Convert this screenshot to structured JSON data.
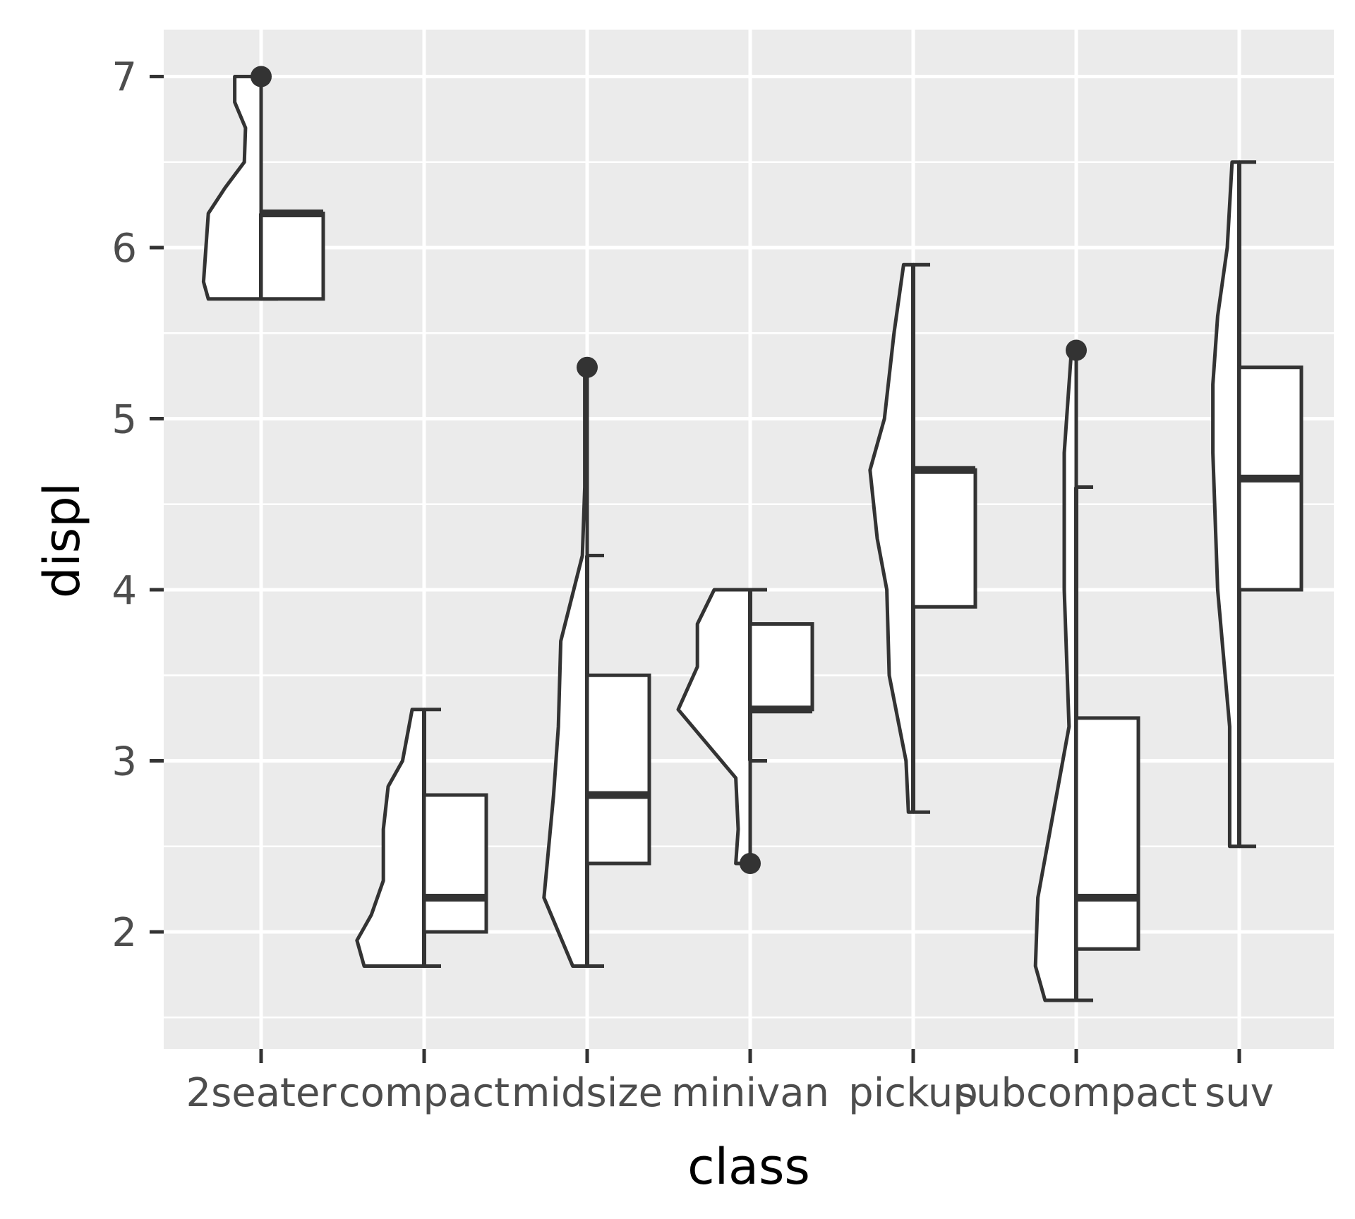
{
  "chart_data": {
    "type": "violin-box",
    "title": "",
    "xlabel": "class",
    "ylabel": "displ",
    "ylim": [
      1.42,
      7.27
    ],
    "yticks": [
      2,
      3,
      4,
      5,
      6,
      7
    ],
    "y_minor_ticks": [
      1.5,
      2.5,
      3.5,
      4.5,
      5.5,
      6.5
    ],
    "grid": true,
    "colors": {
      "panel_background": "#ebebeb",
      "grid": "#ffffff",
      "stroke": "#333333",
      "fill": "#ffffff",
      "tick_text": "#4d4d4d",
      "axis_title": "#000000"
    },
    "categories": [
      "2seater",
      "compact",
      "midsize",
      "minivan",
      "pickup",
      "subcompact",
      "suv"
    ],
    "boxes": [
      {
        "category": "2seater",
        "lower_whisker": 5.7,
        "q1": 5.7,
        "median": 6.2,
        "q3": 6.2,
        "upper_whisker": 6.2,
        "outliers": [
          7.0
        ]
      },
      {
        "category": "compact",
        "lower_whisker": 1.8,
        "q1": 2.0,
        "median": 2.2,
        "q3": 2.8,
        "upper_whisker": 3.3,
        "outliers": []
      },
      {
        "category": "midsize",
        "lower_whisker": 1.8,
        "q1": 2.4,
        "median": 2.8,
        "q3": 3.5,
        "upper_whisker": 4.2,
        "outliers": [
          5.3
        ]
      },
      {
        "category": "minivan",
        "lower_whisker": 3.0,
        "q1": 3.3,
        "median": 3.3,
        "q3": 3.8,
        "upper_whisker": 4.0,
        "outliers": [
          2.4
        ]
      },
      {
        "category": "pickup",
        "lower_whisker": 2.7,
        "q1": 3.9,
        "median": 4.7,
        "q3": 4.7,
        "upper_whisker": 5.9,
        "outliers": []
      },
      {
        "category": "subcompact",
        "lower_whisker": 1.6,
        "q1": 1.9,
        "median": 2.2,
        "q3": 3.25,
        "upper_whisker": 4.6,
        "outliers": [
          5.4
        ]
      },
      {
        "category": "suv",
        "lower_whisker": 2.5,
        "q1": 4.0,
        "median": 4.65,
        "q3": 5.3,
        "upper_whisker": 6.5,
        "outliers": []
      }
    ],
    "violins": [
      {
        "category": "2seater",
        "density": [
          [
            5.7,
            0.22
          ],
          [
            5.8,
            0.24
          ],
          [
            6.0,
            0.23
          ],
          [
            6.2,
            0.22
          ],
          [
            6.35,
            0.15
          ],
          [
            6.5,
            0.07
          ],
          [
            6.7,
            0.065
          ],
          [
            6.85,
            0.11
          ],
          [
            7.0,
            0.11
          ]
        ]
      },
      {
        "category": "compact",
        "density": [
          [
            1.8,
            0.25
          ],
          [
            1.95,
            0.28
          ],
          [
            2.1,
            0.22
          ],
          [
            2.3,
            0.17
          ],
          [
            2.6,
            0.17
          ],
          [
            2.85,
            0.15
          ],
          [
            3.0,
            0.09
          ],
          [
            3.3,
            0.05
          ]
        ]
      },
      {
        "category": "midsize",
        "density": [
          [
            1.8,
            0.06
          ],
          [
            2.2,
            0.18
          ],
          [
            2.5,
            0.16
          ],
          [
            2.8,
            0.14
          ],
          [
            3.2,
            0.12
          ],
          [
            3.7,
            0.11
          ],
          [
            4.2,
            0.02
          ],
          [
            4.6,
            0.01
          ],
          [
            5.3,
            0.01
          ]
        ]
      },
      {
        "category": "minivan",
        "density": [
          [
            2.4,
            0.06
          ],
          [
            2.6,
            0.05
          ],
          [
            2.9,
            0.06
          ],
          [
            3.1,
            0.18
          ],
          [
            3.3,
            0.3
          ],
          [
            3.55,
            0.22
          ],
          [
            3.8,
            0.22
          ],
          [
            4.0,
            0.15
          ]
        ]
      },
      {
        "category": "pickup",
        "density": [
          [
            2.7,
            0.02
          ],
          [
            3.0,
            0.03
          ],
          [
            3.5,
            0.1
          ],
          [
            4.0,
            0.11
          ],
          [
            4.3,
            0.15
          ],
          [
            4.7,
            0.18
          ],
          [
            5.0,
            0.12
          ],
          [
            5.5,
            0.08
          ],
          [
            5.9,
            0.04
          ]
        ]
      },
      {
        "category": "subcompact",
        "density": [
          [
            1.6,
            0.13
          ],
          [
            1.8,
            0.17
          ],
          [
            2.2,
            0.16
          ],
          [
            3.2,
            0.03
          ],
          [
            4.0,
            0.05
          ],
          [
            4.8,
            0.05
          ],
          [
            5.4,
            0.02
          ]
        ]
      },
      {
        "category": "suv",
        "density": [
          [
            2.5,
            0.04
          ],
          [
            3.2,
            0.04
          ],
          [
            4.0,
            0.09
          ],
          [
            4.8,
            0.11
          ],
          [
            5.2,
            0.11
          ],
          [
            5.6,
            0.09
          ],
          [
            6.0,
            0.05
          ],
          [
            6.5,
            0.03
          ]
        ]
      }
    ]
  }
}
